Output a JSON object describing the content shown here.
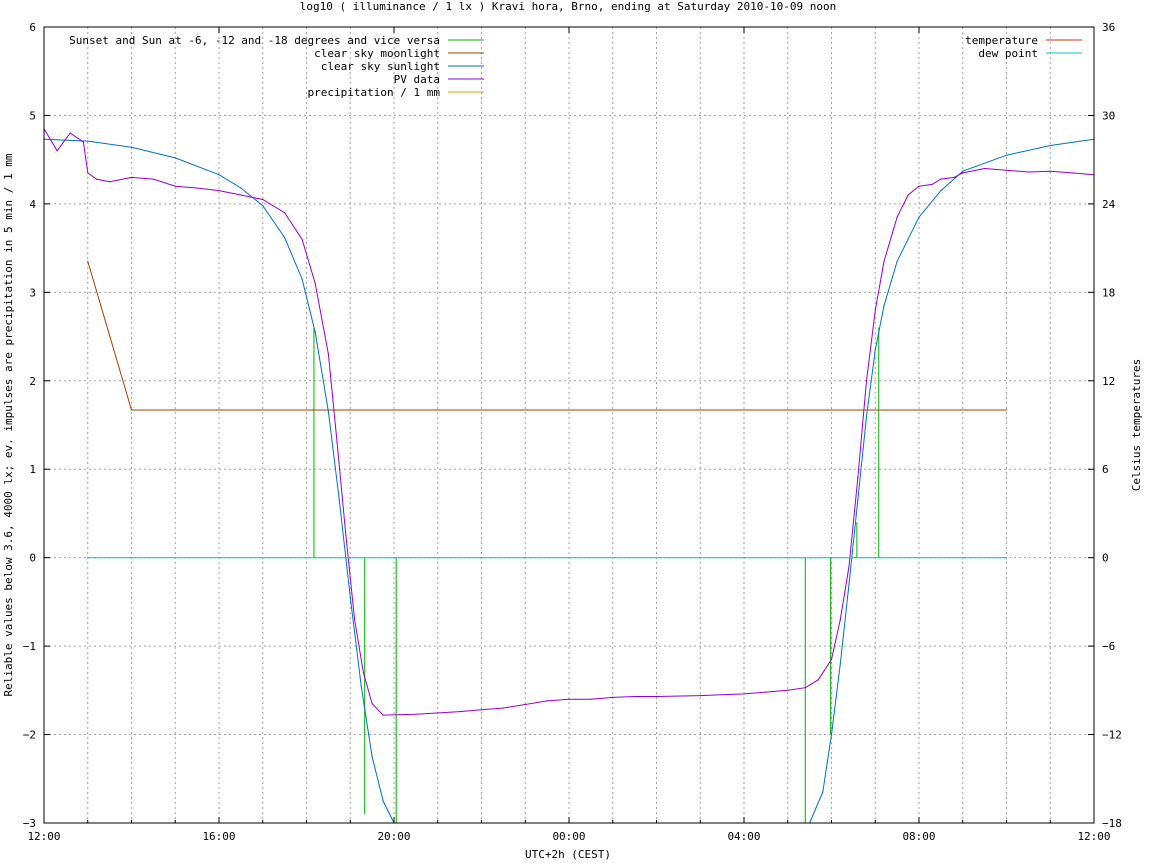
{
  "chart_data": {
    "type": "line",
    "title": "log10 ( illuminance / 1 lx ) Kravi hora, Brno, ending at Saturday 2010-10-09 noon",
    "xlabel": "UTC+2h (CEST)",
    "ylabel": "Reliable values below 3.6, 4000 lx; ev. impulses are precipitation in 5 min / 1 mm",
    "y2label": "Celsius temperatures",
    "xlim": [
      12,
      36
    ],
    "ylim": [
      -3,
      6
    ],
    "y2lim": [
      -18,
      36
    ],
    "grid": true,
    "legend_left_position": "top-left",
    "legend_right_position": "top-right",
    "x_ticks": [
      {
        "v": 12,
        "label": "12:00"
      },
      {
        "v": 16,
        "label": "16:00"
      },
      {
        "v": 20,
        "label": "20:00"
      },
      {
        "v": 24,
        "label": "00:00"
      },
      {
        "v": 28,
        "label": "04:00"
      },
      {
        "v": 32,
        "label": "08:00"
      },
      {
        "v": 36,
        "label": "12:00"
      }
    ],
    "y_ticks": [
      {
        "v": 6,
        "label": "6"
      },
      {
        "v": 5,
        "label": "5"
      },
      {
        "v": 4,
        "label": "4"
      },
      {
        "v": 3,
        "label": "3"
      },
      {
        "v": 2,
        "label": "2"
      },
      {
        "v": 1,
        "label": "1"
      },
      {
        "v": 0,
        "label": "0"
      },
      {
        "v": -1,
        "label": "−1"
      },
      {
        "v": -2,
        "label": "−2"
      },
      {
        "v": -3,
        "label": "−3"
      }
    ],
    "y2_ticks": [
      {
        "v": 36,
        "label": "36"
      },
      {
        "v": 30,
        "label": "30"
      },
      {
        "v": 24,
        "label": "24"
      },
      {
        "v": 18,
        "label": "18"
      },
      {
        "v": 12,
        "label": "12"
      },
      {
        "v": 6,
        "label": "6"
      },
      {
        "v": 0,
        "label": "0"
      },
      {
        "v": -6,
        "label": "−6"
      },
      {
        "v": -12,
        "label": "−12"
      },
      {
        "v": -18,
        "label": "−18"
      }
    ],
    "series": [
      {
        "name": "Sunset and Sun at -6, -12 and -18 degrees and vice versa",
        "color": "#00b000",
        "style": "impulses",
        "impulses": [
          {
            "x": 18.17,
            "y": 2.6
          },
          {
            "x": 19.33,
            "y": -2.9
          },
          {
            "x": 20.05,
            "y": -3.0
          },
          {
            "x": 29.4,
            "y": -3.0
          },
          {
            "x": 29.98,
            "y": -2.0
          },
          {
            "x": 30.58,
            "y": 0.4
          },
          {
            "x": 31.08,
            "y": 2.6
          }
        ]
      },
      {
        "name": "clear sky moonlight",
        "color": "#a04000",
        "style": "line",
        "x": [
          13.0,
          14.0,
          34.0
        ],
        "y": [
          3.35,
          1.67,
          1.67
        ]
      },
      {
        "name": "clear sky sunlight",
        "color": "#0070c0",
        "style": "line",
        "x": [
          12.0,
          13.0,
          14.0,
          15.0,
          16.0,
          16.5,
          17.0,
          17.5,
          17.9,
          18.2,
          18.5,
          18.75,
          19.0,
          19.25,
          19.5,
          19.75,
          20.0,
          29.5,
          29.8,
          30.0,
          30.2,
          30.4,
          30.6,
          30.8,
          31.0,
          31.2,
          31.5,
          32.0,
          32.5,
          33.0,
          34.0,
          35.0,
          36.0
        ],
        "y": [
          4.73,
          4.71,
          4.64,
          4.52,
          4.33,
          4.18,
          3.98,
          3.62,
          3.15,
          2.55,
          1.65,
          0.65,
          -0.45,
          -1.45,
          -2.25,
          -2.75,
          -3.0,
          -3.0,
          -2.65,
          -2.0,
          -1.2,
          -0.3,
          0.65,
          1.6,
          2.35,
          2.85,
          3.35,
          3.85,
          4.15,
          4.37,
          4.55,
          4.66,
          4.73
        ]
      },
      {
        "name": "PV data",
        "color": "#9400d3",
        "style": "line",
        "x": [
          12.0,
          12.3,
          12.6,
          12.9,
          13.0,
          13.2,
          13.5,
          14.0,
          14.5,
          15.0,
          15.5,
          16.0,
          16.5,
          17.0,
          17.5,
          17.9,
          18.2,
          18.5,
          18.7,
          18.9,
          19.1,
          19.3,
          19.5,
          19.75,
          20.5,
          21.5,
          22.0,
          22.5,
          23.0,
          23.5,
          24.0,
          24.5,
          25.0,
          25.5,
          26.0,
          27.0,
          28.0,
          28.5,
          29.0,
          29.4,
          29.7,
          30.0,
          30.2,
          30.4,
          30.6,
          30.8,
          31.0,
          31.2,
          31.5,
          31.75,
          32.0,
          32.3,
          32.5,
          32.8,
          33.0,
          33.5,
          34.0,
          34.5,
          35.0,
          35.5,
          36.0
        ],
        "y": [
          4.85,
          4.6,
          4.8,
          4.7,
          4.35,
          4.28,
          4.25,
          4.3,
          4.28,
          4.2,
          4.18,
          4.15,
          4.1,
          4.05,
          3.9,
          3.6,
          3.1,
          2.3,
          1.3,
          0.25,
          -0.7,
          -1.3,
          -1.65,
          -1.78,
          -1.77,
          -1.74,
          -1.72,
          -1.7,
          -1.66,
          -1.62,
          -1.6,
          -1.6,
          -1.58,
          -1.57,
          -1.57,
          -1.56,
          -1.54,
          -1.52,
          -1.5,
          -1.47,
          -1.38,
          -1.15,
          -0.7,
          -0.1,
          0.9,
          2.0,
          2.8,
          3.35,
          3.85,
          4.1,
          4.2,
          4.22,
          4.28,
          4.3,
          4.35,
          4.4,
          4.38,
          4.36,
          4.37,
          4.35,
          4.33
        ]
      },
      {
        "name": "precipitation / 1 mm",
        "color": "#e0a000",
        "style": "impulses",
        "impulses": []
      },
      {
        "name": "temperature",
        "color": "#c04000",
        "axis": "y2",
        "style": "line",
        "x": [],
        "y": []
      },
      {
        "name": "dew point",
        "color": "#00c8c8",
        "axis": "y",
        "style": "line",
        "x": [
          13.0,
          34.0
        ],
        "y": [
          0.0,
          0.0
        ]
      }
    ]
  }
}
